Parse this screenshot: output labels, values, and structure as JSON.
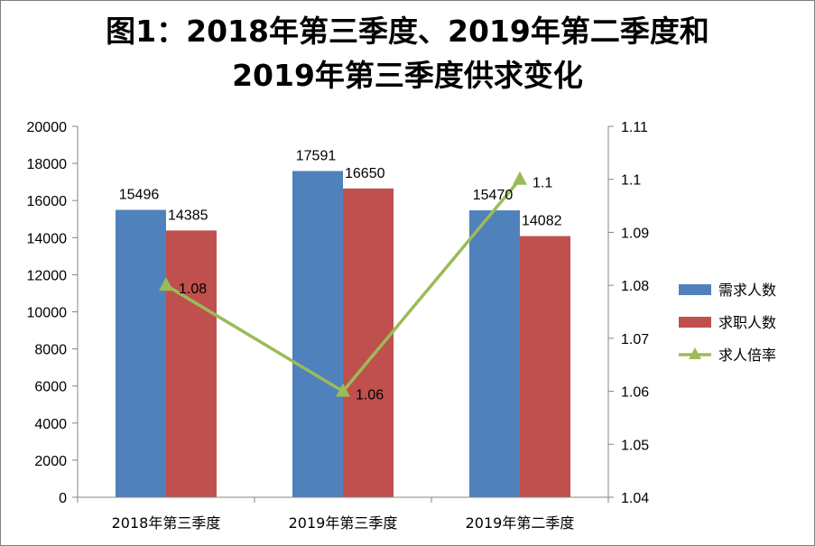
{
  "title_line1": "图1：2018年第三季度、2019年第二季度和",
  "title_line2": "2019年第三季度供求变化",
  "chart_data": {
    "type": "bar",
    "categories": [
      "2018年第三季度",
      "2019年第三季度",
      "2019年第二季度"
    ],
    "series": [
      {
        "name": "需求人数",
        "kind": "bar",
        "axis": "left",
        "color": "#4F81BD",
        "values": [
          15496,
          17591,
          15470
        ]
      },
      {
        "name": "求职人数",
        "kind": "bar",
        "axis": "left",
        "color": "#C0504D",
        "values": [
          14385,
          16650,
          14082
        ]
      },
      {
        "name": "求人倍率",
        "kind": "line",
        "axis": "right",
        "color": "#9BBB59",
        "marker": "triangle",
        "values": [
          1.08,
          1.06,
          1.1
        ]
      }
    ],
    "ylim": [
      0,
      20000
    ],
    "yticks": [
      "0",
      "2000",
      "4000",
      "6000",
      "8000",
      "10000",
      "12000",
      "14000",
      "16000",
      "18000",
      "20000"
    ],
    "y2lim": [
      1.04,
      1.11
    ],
    "y2ticks": [
      "1.04",
      "1.05",
      "1.06",
      "1.07",
      "1.08",
      "1.09",
      "1.1",
      "1.11"
    ],
    "data_labels": {
      "bars": [
        [
          "15496",
          "17591",
          "15470"
        ],
        [
          "14385",
          "16650",
          "14082"
        ]
      ],
      "line": [
        "1.08",
        "1.06",
        "1.1"
      ]
    },
    "grid": false,
    "legend_position": "right"
  }
}
